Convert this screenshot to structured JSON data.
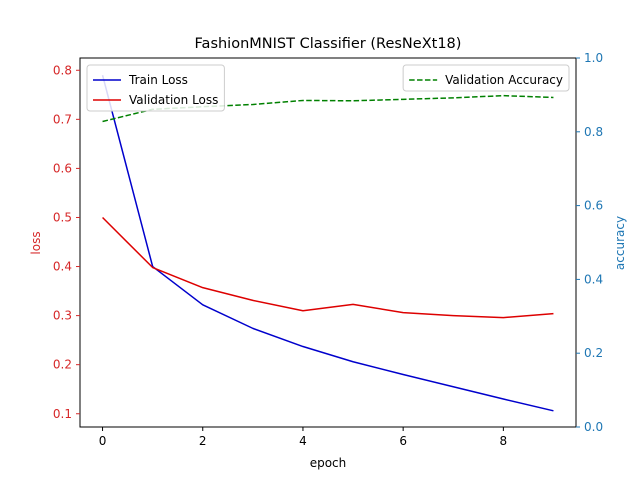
{
  "chart_data": {
    "type": "line",
    "title": "FashionMNIST Classifier (ResNeXt18)",
    "xlabel": "epoch",
    "y_left_label": "loss",
    "y_right_label": "accuracy",
    "xlim": [
      -0.45,
      9.45
    ],
    "ylim_left": [
      0.073,
      0.825
    ],
    "ylim_right": [
      0.0,
      1.0
    ],
    "x_ticks": [
      0,
      2,
      4,
      6,
      8
    ],
    "y_left_ticks": [
      0.1,
      0.2,
      0.3,
      0.4,
      0.5,
      0.6,
      0.7,
      0.8
    ],
    "y_right_ticks": [
      0.0,
      0.2,
      0.4,
      0.6,
      0.8,
      1.0
    ],
    "x": [
      0,
      1,
      2,
      3,
      4,
      5,
      6,
      7,
      8,
      9
    ],
    "series": [
      {
        "name": "Train Loss",
        "axis": "left",
        "color": "#0000cc",
        "dash": "solid",
        "values": [
          0.79,
          0.4,
          0.322,
          0.274,
          0.237,
          0.206,
          0.18,
          0.155,
          0.13,
          0.106
        ]
      },
      {
        "name": "Validation Loss",
        "axis": "left",
        "color": "#dd0000",
        "dash": "solid",
        "values": [
          0.5,
          0.398,
          0.357,
          0.331,
          0.31,
          0.323,
          0.306,
          0.3,
          0.296,
          0.304
        ]
      },
      {
        "name": "Validation Accuracy",
        "axis": "right",
        "color": "#008000",
        "dash": "dashed",
        "values": [
          0.828,
          0.861,
          0.868,
          0.874,
          0.885,
          0.884,
          0.888,
          0.892,
          0.898,
          0.893
        ]
      }
    ],
    "legends": [
      {
        "position": "upper left",
        "entries": [
          "Train Loss",
          "Validation Loss"
        ]
      },
      {
        "position": "upper right",
        "entries": [
          "Validation Accuracy"
        ]
      }
    ],
    "left_axis_color": "#d62728",
    "right_axis_color": "#1f77b4",
    "grid": false
  }
}
